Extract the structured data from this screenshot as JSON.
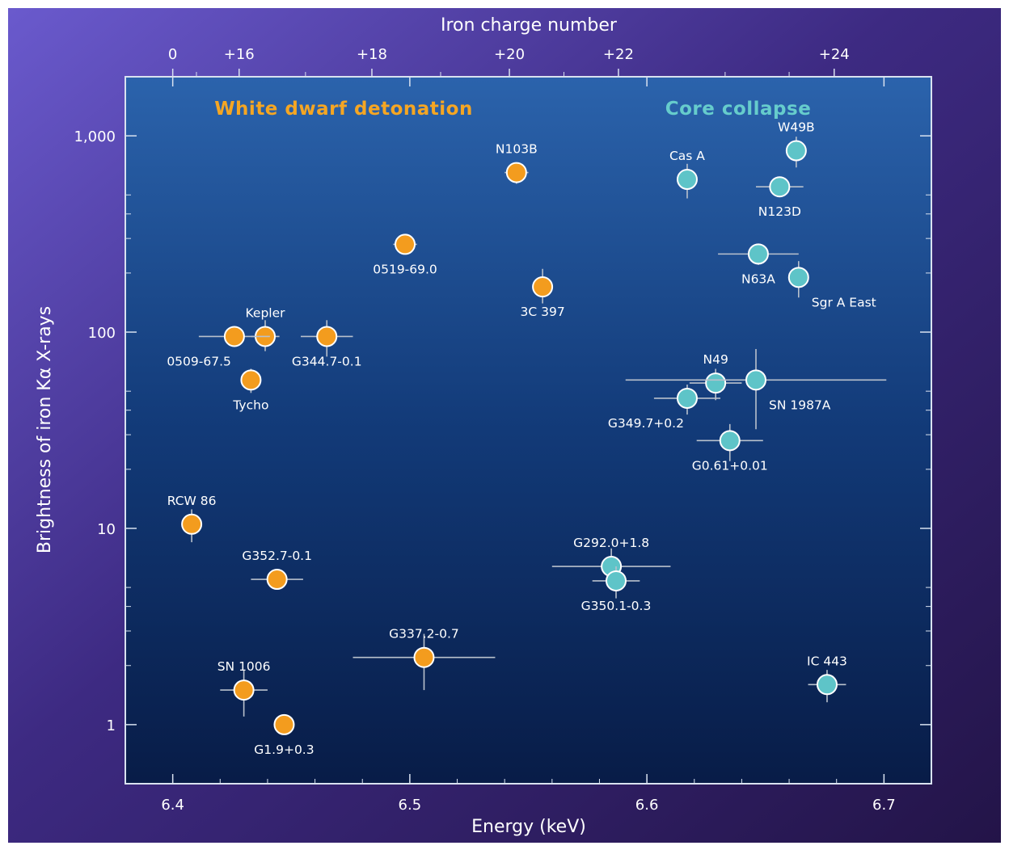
{
  "chart_data": {
    "type": "scatter",
    "xlabel": "Energy (keV)",
    "ylabel": "Brightness of iron Kα X-rays",
    "top_axis_label": "Iron charge number",
    "xlim": [
      6.38,
      6.72
    ],
    "ylim": [
      0.5,
      2000
    ],
    "y_scale": "log",
    "x_ticks": [
      "6.4",
      "6.5",
      "6.6",
      "6.7"
    ],
    "x_tick_values": [
      6.4,
      6.5,
      6.6,
      6.7
    ],
    "y_ticks": [
      "1",
      "10",
      "100",
      "1,000"
    ],
    "y_tick_values": [
      1,
      10,
      100,
      1000
    ],
    "top_ticks": [
      {
        "label": "0",
        "energy": 6.4
      },
      {
        "label": "+16",
        "energy": 6.428
      },
      {
        "label": "+18",
        "energy": 6.484
      },
      {
        "label": "+20",
        "energy": 6.542
      },
      {
        "label": "+22",
        "energy": 6.588
      },
      {
        "label": "+24",
        "energy": 6.679
      }
    ],
    "groups": [
      {
        "name": "White dwarf detonation",
        "color": "#f5a623"
      },
      {
        "name": "Core collapse",
        "color": "#66cccc"
      }
    ],
    "series": [
      {
        "name": "White dwarf detonation",
        "color": "#f39c1e",
        "points": [
          {
            "label": "N103B",
            "x": 6.545,
            "y": 650,
            "xerr": 0.005,
            "yerr_lo": 80,
            "yerr_hi": 80,
            "label_pos": "above"
          },
          {
            "label": "0519-69.0",
            "x": 6.498,
            "y": 280,
            "xerr": 0.005,
            "yerr_lo": 30,
            "yerr_hi": 30,
            "label_pos": "below"
          },
          {
            "label": "3C 397",
            "x": 6.556,
            "y": 170,
            "xerr": 0.004,
            "yerr_lo": 30,
            "yerr_hi": 40,
            "label_pos": "below"
          },
          {
            "label": "Kepler",
            "x": 6.439,
            "y": 95,
            "xerr": 0.006,
            "yerr_lo": 15,
            "yerr_hi": 20,
            "label_pos": "above"
          },
          {
            "label": "0509-67.5",
            "x": 6.426,
            "y": 95,
            "xerr": 0.015,
            "yerr_lo": 8,
            "yerr_hi": 8,
            "label_pos": "below-left"
          },
          {
            "label": "G344.7-0.1",
            "x": 6.465,
            "y": 95,
            "xerr": 0.011,
            "yerr_lo": 20,
            "yerr_hi": 20,
            "label_pos": "below"
          },
          {
            "label": "Tycho",
            "x": 6.433,
            "y": 57,
            "xerr": 0.004,
            "yerr_lo": 8,
            "yerr_hi": 8,
            "label_pos": "below"
          },
          {
            "label": "RCW 86",
            "x": 6.408,
            "y": 10.5,
            "xerr": 0.004,
            "yerr_lo": 2,
            "yerr_hi": 2,
            "label_pos": "above"
          },
          {
            "label": "G352.7-0.1",
            "x": 6.444,
            "y": 5.5,
            "xerr": 0.011,
            "yerr_lo": 0.6,
            "yerr_hi": 0.6,
            "label_pos": "above"
          },
          {
            "label": "G337.2-0.7",
            "x": 6.506,
            "y": 2.2,
            "xerr": 0.03,
            "yerr_lo": 0.7,
            "yerr_hi": 0.7,
            "label_pos": "above"
          },
          {
            "label": "SN 1006",
            "x": 6.43,
            "y": 1.5,
            "xerr": 0.01,
            "yerr_lo": 0.4,
            "yerr_hi": 0.4,
            "label_pos": "above"
          },
          {
            "label": "G1.9+0.3",
            "x": 6.447,
            "y": 1.0,
            "xerr": 0.004,
            "yerr_lo": 0.1,
            "yerr_hi": 0.1,
            "label_pos": "below"
          }
        ]
      },
      {
        "name": "Core collapse",
        "color": "#5ec4c8",
        "points": [
          {
            "label": "W49B",
            "x": 6.663,
            "y": 840,
            "xerr": 0.004,
            "yerr_lo": 150,
            "yerr_hi": 150,
            "label_pos": "above"
          },
          {
            "label": "Cas A",
            "x": 6.617,
            "y": 600,
            "xerr": 0.004,
            "yerr_lo": 120,
            "yerr_hi": 120,
            "label_pos": "above"
          },
          {
            "label": "N123D",
            "x": 6.656,
            "y": 550,
            "xerr": 0.01,
            "yerr_lo": 60,
            "yerr_hi": 60,
            "label_pos": "below"
          },
          {
            "label": "N63A",
            "x": 6.647,
            "y": 250,
            "xerr": 0.017,
            "yerr_lo": 30,
            "yerr_hi": 30,
            "label_pos": "below"
          },
          {
            "label": "Sgr A East",
            "x": 6.664,
            "y": 190,
            "xerr": 0.004,
            "yerr_lo": 40,
            "yerr_hi": 40,
            "label_pos": "below-right"
          },
          {
            "label": "N49",
            "x": 6.629,
            "y": 55,
            "xerr": 0.011,
            "yerr_lo": 10,
            "yerr_hi": 10,
            "label_pos": "above"
          },
          {
            "label": "SN 1987A",
            "x": 6.646,
            "y": 57,
            "xerr": 0.055,
            "yerr_lo": 25,
            "yerr_hi": 25,
            "label_pos": "below-right"
          },
          {
            "label": "G349.7+0.2",
            "x": 6.617,
            "y": 46,
            "xerr": 0.014,
            "yerr_lo": 8,
            "yerr_hi": 8,
            "label_pos": "below-left"
          },
          {
            "label": "G0.61+0.01",
            "x": 6.635,
            "y": 28,
            "xerr": 0.014,
            "yerr_lo": 6,
            "yerr_hi": 6,
            "label_pos": "below"
          },
          {
            "label": "G292.0+1.8",
            "x": 6.585,
            "y": 6.4,
            "xerr": 0.025,
            "yerr_lo": 1.5,
            "yerr_hi": 1.5,
            "label_pos": "above"
          },
          {
            "label": "G350.1-0.3",
            "x": 6.587,
            "y": 5.4,
            "xerr": 0.01,
            "yerr_lo": 1,
            "yerr_hi": 1,
            "label_pos": "below"
          },
          {
            "label": "IC 443",
            "x": 6.676,
            "y": 1.6,
            "xerr": 0.008,
            "yerr_lo": 0.3,
            "yerr_hi": 0.3,
            "label_pos": "above"
          }
        ]
      }
    ]
  }
}
